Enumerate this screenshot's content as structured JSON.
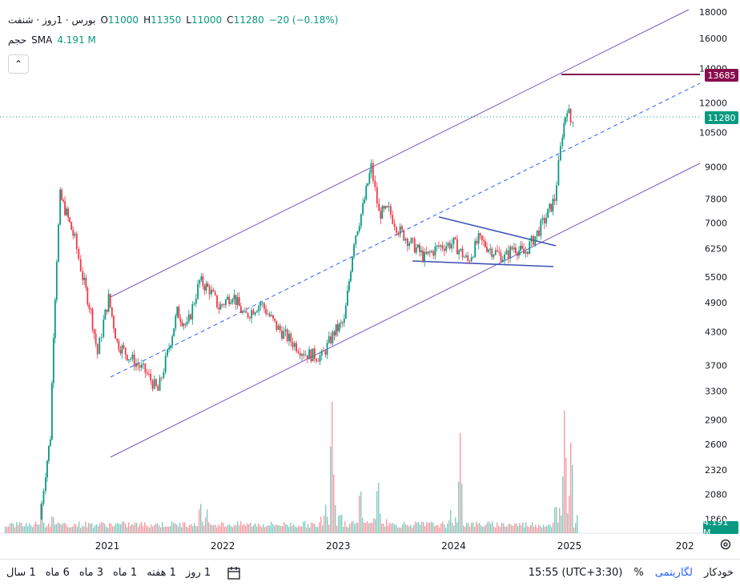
{
  "legend": {
    "symbol": "بورس · 1روز · شنفت",
    "open_label": "O",
    "open": "11000",
    "high_label": "H",
    "high": "11350",
    "low_label": "L",
    "low": "11000",
    "close_label": "C",
    "close": "11280",
    "change": "−20 (−0.18%)"
  },
  "volume_legend": {
    "label": "حجم",
    "indicator": "SMA",
    "value": "4.191 M"
  },
  "price_tags": {
    "target": "13685",
    "last": "11280",
    "volume": "4.191 M"
  },
  "bottom_bar": {
    "timeframes": [
      "1 روز",
      "1 هفته",
      "1 ماه",
      "3 ماه",
      "6 ماه",
      "1 سال"
    ],
    "time": "15:55 (UTC+3:30)",
    "percent": "%",
    "log": "لگاریتمی",
    "auto": "خودکار"
  },
  "colors": {
    "up": "#089981",
    "down": "#f23645",
    "channel": "#7e57c2",
    "midline": "#2962ff",
    "target": "#880e4f"
  },
  "chart_data": {
    "type": "candlestick",
    "scale": "log",
    "y_ticks": [
      1860,
      2080,
      2320,
      2600,
      2900,
      3300,
      3700,
      4300,
      4900,
      5500,
      6250,
      7000,
      7800,
      9000,
      10500,
      12000,
      14000,
      16000,
      18000
    ],
    "x_ticks": [
      "2021",
      "2022",
      "2023",
      "2024",
      "2025",
      "202"
    ],
    "last_price": 11280,
    "target_price": 13685,
    "close_series": [
      {
        "date": "2020-06-01",
        "v": 1860
      },
      {
        "date": "2020-06-20",
        "v": 2300
      },
      {
        "date": "2020-07-05",
        "v": 2700
      },
      {
        "date": "2020-07-15",
        "v": 4300
      },
      {
        "date": "2020-07-25",
        "v": 6000
      },
      {
        "date": "2020-08-05",
        "v": 7900
      },
      {
        "date": "2020-08-25",
        "v": 7300
      },
      {
        "date": "2020-09-20",
        "v": 6500
      },
      {
        "date": "2020-10-15",
        "v": 5500
      },
      {
        "date": "2020-11-10",
        "v": 4700
      },
      {
        "date": "2020-12-01",
        "v": 3900
      },
      {
        "date": "2020-12-20",
        "v": 4500
      },
      {
        "date": "2021-01-05",
        "v": 5000
      },
      {
        "date": "2021-02-01",
        "v": 4100
      },
      {
        "date": "2021-03-10",
        "v": 3850
      },
      {
        "date": "2021-05-01",
        "v": 3600
      },
      {
        "date": "2021-06-10",
        "v": 3300
      },
      {
        "date": "2021-07-10",
        "v": 3900
      },
      {
        "date": "2021-08-10",
        "v": 4700
      },
      {
        "date": "2021-09-10",
        "v": 4400
      },
      {
        "date": "2021-10-20",
        "v": 5400
      },
      {
        "date": "2021-11-20",
        "v": 5200
      },
      {
        "date": "2021-12-20",
        "v": 4800
      },
      {
        "date": "2022-02-01",
        "v": 5100
      },
      {
        "date": "2022-03-10",
        "v": 4600
      },
      {
        "date": "2022-05-01",
        "v": 4900
      },
      {
        "date": "2022-06-20",
        "v": 4400
      },
      {
        "date": "2022-08-10",
        "v": 4100
      },
      {
        "date": "2022-09-20",
        "v": 3900
      },
      {
        "date": "2022-11-10",
        "v": 3850
      },
      {
        "date": "2022-12-20",
        "v": 4300
      },
      {
        "date": "2023-01-20",
        "v": 4500
      },
      {
        "date": "2023-02-20",
        "v": 6500
      },
      {
        "date": "2023-03-20",
        "v": 7500
      },
      {
        "date": "2023-04-15",
        "v": 9000
      },
      {
        "date": "2023-05-10",
        "v": 7300
      },
      {
        "date": "2023-06-10",
        "v": 7400
      },
      {
        "date": "2023-07-10",
        "v": 6800
      },
      {
        "date": "2023-08-20",
        "v": 6400
      },
      {
        "date": "2023-10-01",
        "v": 6000
      },
      {
        "date": "2023-11-15",
        "v": 6300
      },
      {
        "date": "2024-01-01",
        "v": 6400
      },
      {
        "date": "2024-02-15",
        "v": 5900
      },
      {
        "date": "2024-03-20",
        "v": 6500
      },
      {
        "date": "2024-05-01",
        "v": 6200
      },
      {
        "date": "2024-06-10",
        "v": 6000
      },
      {
        "date": "2024-07-10",
        "v": 6300
      },
      {
        "date": "2024-08-10",
        "v": 6100
      },
      {
        "date": "2024-09-15",
        "v": 6600
      },
      {
        "date": "2024-10-20",
        "v": 7200
      },
      {
        "date": "2024-11-15",
        "v": 7800
      },
      {
        "date": "2024-12-10",
        "v": 10500
      },
      {
        "date": "2024-12-25",
        "v": 11800
      },
      {
        "date": "2025-01-05",
        "v": 11000
      },
      {
        "date": "2025-01-12",
        "v": 11280
      }
    ],
    "volume_series": [
      {
        "date": "2020-06-05",
        "v": 0.9
      },
      {
        "date": "2020-07-10",
        "v": 0.5
      },
      {
        "date": "2021-10-20",
        "v": 0.8
      },
      {
        "date": "2021-11-10",
        "v": 0.6
      },
      {
        "date": "2022-11-20",
        "v": 0.7
      },
      {
        "date": "2022-12-10",
        "v": 3.3
      },
      {
        "date": "2023-03-10",
        "v": 1.2
      },
      {
        "date": "2023-05-05",
        "v": 1.4
      },
      {
        "date": "2024-01-20",
        "v": 2.3
      },
      {
        "date": "2024-12-15",
        "v": 3.0
      },
      {
        "date": "2025-01-05",
        "v": 2.4
      }
    ]
  }
}
